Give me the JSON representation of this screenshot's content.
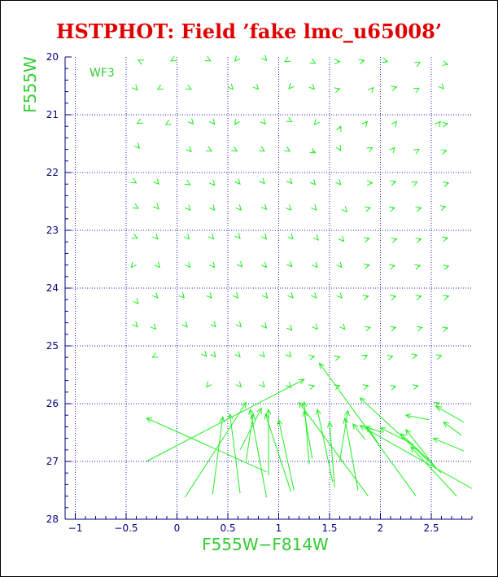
{
  "chart_data": {
    "type": "scatter",
    "title": "HSTPHOT: Field ’fake lmc_u65008’",
    "xlabel": "F555W−F814W",
    "ylabel": "F555W",
    "panel_label": "WF3",
    "xlim": [
      -1.1,
      2.9
    ],
    "ylim": [
      20,
      28
    ],
    "y_inverted": true,
    "x_ticks": [
      -1,
      -0.5,
      0,
      0.5,
      1,
      1.5,
      2,
      2.5
    ],
    "x_tick_labels": [
      "−1",
      "−0.5",
      "0",
      "0.5",
      "1",
      "1.5",
      "2",
      "2.5"
    ],
    "y_ticks": [
      20,
      21,
      22,
      23,
      24,
      25,
      26,
      27,
      28
    ],
    "y_tick_labels": [
      "20",
      "21",
      "22",
      "23",
      "24",
      "25",
      "26",
      "27",
      "28"
    ],
    "grid": true,
    "grid_style": "dotted",
    "colors": {
      "title": "#e00000",
      "labels": "#33cc33",
      "axes": "#000080",
      "grid": "#1f1fbf",
      "vectors": "#22ee22"
    },
    "vector_series": {
      "description_of_fields": [
        "x_start",
        "y_start",
        "x_end",
        "y_end"
      ],
      "vectors": [
        [
          -0.37,
          20.06,
          -0.38,
          20.05
        ],
        [
          -0.05,
          20.06,
          -0.06,
          20.07
        ],
        [
          0.32,
          20.06,
          0.33,
          20.07
        ],
        [
          0.58,
          20.05,
          0.57,
          20.07
        ],
        [
          0.87,
          20.04,
          0.88,
          20.06
        ],
        [
          1.07,
          20.07,
          1.06,
          20.08
        ],
        [
          1.35,
          20.1,
          1.36,
          20.11
        ],
        [
          1.58,
          20.08,
          1.6,
          20.08
        ],
        [
          1.82,
          20.07,
          1.84,
          20.06
        ],
        [
          2.05,
          20.07,
          2.07,
          20.08
        ],
        [
          2.38,
          20.1,
          2.39,
          20.09
        ],
        [
          2.64,
          20.12,
          2.66,
          20.13
        ],
        [
          -0.4,
          20.55,
          -0.39,
          20.57
        ],
        [
          -0.18,
          20.55,
          -0.19,
          20.56
        ],
        [
          0.13,
          20.55,
          0.14,
          20.56
        ],
        [
          0.54,
          20.54,
          0.55,
          20.56
        ],
        [
          0.79,
          20.54,
          0.8,
          20.56
        ],
        [
          1.11,
          20.53,
          1.1,
          20.55
        ],
        [
          1.34,
          20.54,
          1.35,
          20.56
        ],
        [
          1.58,
          20.56,
          1.6,
          20.55
        ],
        [
          1.92,
          20.55,
          1.93,
          20.53
        ],
        [
          2.14,
          20.53,
          2.16,
          20.52
        ],
        [
          2.37,
          20.55,
          2.38,
          20.54
        ],
        [
          2.61,
          20.53,
          2.62,
          20.55
        ],
        [
          -0.38,
          21.14,
          -0.39,
          21.15
        ],
        [
          -0.1,
          21.16,
          -0.11,
          21.17
        ],
        [
          0.15,
          21.14,
          0.16,
          21.16
        ],
        [
          0.36,
          21.14,
          0.37,
          21.16
        ],
        [
          0.58,
          21.14,
          0.57,
          21.17
        ],
        [
          0.86,
          21.14,
          0.87,
          21.16
        ],
        [
          1.12,
          21.11,
          1.13,
          21.12
        ],
        [
          1.36,
          21.15,
          1.35,
          21.17
        ],
        [
          1.6,
          21.24,
          1.61,
          21.2
        ],
        [
          1.86,
          21.14,
          1.87,
          21.12
        ],
        [
          2.15,
          21.14,
          2.16,
          21.12
        ],
        [
          2.58,
          21.14,
          2.59,
          21.12
        ],
        [
          2.64,
          21.16,
          2.66,
          21.15
        ],
        [
          -0.38,
          21.56,
          -0.37,
          21.58
        ],
        [
          0.13,
          21.62,
          0.14,
          21.64
        ],
        [
          0.33,
          21.62,
          0.34,
          21.63
        ],
        [
          0.58,
          21.62,
          0.59,
          21.63
        ],
        [
          0.85,
          21.62,
          0.86,
          21.63
        ],
        [
          1.1,
          21.62,
          1.11,
          21.63
        ],
        [
          1.33,
          21.63,
          1.36,
          21.66
        ],
        [
          1.6,
          21.59,
          1.61,
          21.62
        ],
        [
          1.91,
          21.58,
          1.92,
          21.57
        ],
        [
          2.13,
          21.59,
          2.14,
          21.57
        ],
        [
          2.37,
          21.61,
          2.38,
          21.6
        ],
        [
          2.63,
          21.63,
          2.65,
          21.62
        ],
        [
          -0.41,
          22.17,
          -0.4,
          22.18
        ],
        [
          -0.19,
          22.18,
          -0.18,
          22.2
        ],
        [
          0.12,
          22.2,
          0.13,
          22.21
        ],
        [
          0.36,
          22.2,
          0.37,
          22.22
        ],
        [
          0.61,
          22.18,
          0.62,
          22.2
        ],
        [
          0.85,
          22.17,
          0.86,
          22.19
        ],
        [
          1.12,
          22.17,
          1.13,
          22.19
        ],
        [
          1.35,
          22.19,
          1.36,
          22.21
        ],
        [
          1.6,
          22.19,
          1.61,
          22.21
        ],
        [
          1.9,
          22.18,
          1.92,
          22.18
        ],
        [
          2.13,
          22.17,
          2.15,
          22.16
        ],
        [
          2.35,
          22.17,
          2.36,
          22.16
        ],
        [
          2.65,
          22.19,
          2.67,
          22.18
        ],
        [
          -0.39,
          22.61,
          -0.38,
          22.62
        ],
        [
          -0.19,
          22.61,
          -0.18,
          22.63
        ],
        [
          0.12,
          22.63,
          0.13,
          22.65
        ],
        [
          0.36,
          22.63,
          0.37,
          22.65
        ],
        [
          0.62,
          22.63,
          0.63,
          22.65
        ],
        [
          0.87,
          22.62,
          0.88,
          22.64
        ],
        [
          1.11,
          22.63,
          1.12,
          22.65
        ],
        [
          1.36,
          22.63,
          1.37,
          22.65
        ],
        [
          1.66,
          22.66,
          1.67,
          22.68
        ],
        [
          1.88,
          22.62,
          1.9,
          22.61
        ],
        [
          2.12,
          22.62,
          2.14,
          22.61
        ],
        [
          2.38,
          22.62,
          2.4,
          22.61
        ],
        [
          2.62,
          22.6,
          2.64,
          22.59
        ],
        [
          -0.4,
          23.13,
          -0.39,
          23.14
        ],
        [
          -0.2,
          23.13,
          -0.19,
          23.15
        ],
        [
          0.11,
          23.13,
          0.12,
          23.15
        ],
        [
          0.35,
          23.13,
          0.36,
          23.15
        ],
        [
          0.61,
          23.12,
          0.62,
          23.14
        ],
        [
          0.87,
          23.13,
          0.88,
          23.15
        ],
        [
          1.13,
          23.13,
          1.14,
          23.15
        ],
        [
          1.38,
          23.15,
          1.39,
          23.17
        ],
        [
          1.63,
          23.17,
          1.64,
          23.19
        ],
        [
          1.87,
          23.15,
          1.89,
          23.14
        ],
        [
          2.14,
          23.16,
          2.16,
          23.15
        ],
        [
          2.38,
          23.16,
          2.4,
          23.15
        ],
        [
          2.64,
          23.14,
          2.66,
          23.13
        ],
        [
          -0.44,
          23.62,
          -0.45,
          23.64
        ],
        [
          -0.18,
          23.62,
          -0.17,
          23.64
        ],
        [
          0.12,
          23.62,
          0.13,
          23.64
        ],
        [
          0.36,
          23.62,
          0.37,
          23.64
        ],
        [
          0.63,
          23.61,
          0.64,
          23.63
        ],
        [
          0.87,
          23.62,
          0.88,
          23.64
        ],
        [
          1.12,
          23.61,
          1.13,
          23.63
        ],
        [
          1.37,
          23.62,
          1.38,
          23.64
        ],
        [
          1.61,
          23.62,
          1.62,
          23.64
        ],
        [
          1.87,
          23.61,
          1.89,
          23.6
        ],
        [
          2.12,
          23.62,
          2.14,
          23.61
        ],
        [
          2.37,
          23.62,
          2.39,
          23.61
        ],
        [
          2.65,
          23.63,
          2.67,
          23.62
        ],
        [
          -0.39,
          24.25,
          -0.38,
          24.27
        ],
        [
          -0.2,
          24.15,
          -0.19,
          24.17
        ],
        [
          0.06,
          24.15,
          0.07,
          24.17
        ],
        [
          0.33,
          24.15,
          0.34,
          24.17
        ],
        [
          0.59,
          24.15,
          0.6,
          24.17
        ],
        [
          0.88,
          24.15,
          0.89,
          24.17
        ],
        [
          1.13,
          24.15,
          1.14,
          24.17
        ],
        [
          1.36,
          24.15,
          1.37,
          24.17
        ],
        [
          1.61,
          24.15,
          1.62,
          24.17
        ],
        [
          1.86,
          24.15,
          1.88,
          24.14
        ],
        [
          2.13,
          24.15,
          2.15,
          24.14
        ],
        [
          2.38,
          24.15,
          2.4,
          24.14
        ],
        [
          2.65,
          24.15,
          2.67,
          24.14
        ],
        [
          -0.4,
          24.65,
          -0.39,
          24.67
        ],
        [
          -0.22,
          24.69,
          -0.21,
          24.71
        ],
        [
          0.09,
          24.65,
          0.1,
          24.67
        ],
        [
          0.37,
          24.65,
          0.38,
          24.67
        ],
        [
          0.62,
          24.65,
          0.63,
          24.67
        ],
        [
          0.87,
          24.67,
          0.88,
          24.69
        ],
        [
          1.12,
          24.71,
          1.13,
          24.73
        ],
        [
          1.37,
          24.69,
          1.38,
          24.71
        ],
        [
          1.64,
          24.69,
          1.65,
          24.71
        ],
        [
          1.88,
          24.69,
          1.9,
          24.68
        ],
        [
          2.13,
          24.69,
          2.15,
          24.68
        ],
        [
          2.39,
          24.69,
          2.41,
          24.68
        ],
        [
          2.64,
          24.7,
          2.66,
          24.69
        ],
        [
          -0.23,
          25.19,
          -0.24,
          25.2
        ],
        [
          0.28,
          25.16,
          0.29,
          25.18
        ],
        [
          0.37,
          25.17,
          0.38,
          25.19
        ],
        [
          0.61,
          25.17,
          0.62,
          25.19
        ],
        [
          0.85,
          25.17,
          0.86,
          25.19
        ],
        [
          1.11,
          25.17,
          1.12,
          25.19
        ],
        [
          1.33,
          25.19,
          1.35,
          25.18
        ],
        [
          1.58,
          25.2,
          1.6,
          25.19
        ],
        [
          1.85,
          25.18,
          1.87,
          25.16
        ],
        [
          2.1,
          25.19,
          2.12,
          25.18
        ],
        [
          2.34,
          25.17,
          2.36,
          25.16
        ],
        [
          2.58,
          25.18,
          2.6,
          25.17
        ],
        [
          0.3,
          25.69,
          0.29,
          25.71
        ],
        [
          0.62,
          25.69,
          0.63,
          25.71
        ],
        [
          0.85,
          25.69,
          0.86,
          25.71
        ],
        [
          1.11,
          25.7,
          1.12,
          25.72
        ],
        [
          1.33,
          25.7,
          1.35,
          25.69
        ],
        [
          1.58,
          25.7,
          1.6,
          25.69
        ],
        [
          1.86,
          25.7,
          1.88,
          25.69
        ],
        [
          2.13,
          25.71,
          2.15,
          25.7
        ],
        [
          2.35,
          25.7,
          2.37,
          25.69
        ],
        [
          2.56,
          26.0,
          2.58,
          25.99
        ],
        [
          -0.3,
          27.0,
          1.25,
          25.58
        ],
        [
          0.08,
          27.62,
          0.68,
          25.98
        ],
        [
          0.35,
          27.57,
          0.45,
          26.23
        ],
        [
          0.62,
          27.55,
          0.52,
          26.18
        ],
        [
          0.62,
          26.8,
          0.83,
          26.08
        ],
        [
          0.88,
          27.62,
          0.72,
          26.1
        ],
        [
          0.9,
          27.24,
          0.9,
          26.1
        ],
        [
          0.68,
          26.98,
          0.75,
          26.18
        ],
        [
          1.12,
          27.52,
          0.87,
          26.18
        ],
        [
          1.15,
          27.5,
          1.0,
          26.28
        ],
        [
          1.3,
          27.05,
          1.25,
          25.97
        ],
        [
          1.33,
          26.95,
          1.25,
          26.13
        ],
        [
          1.53,
          27.35,
          1.38,
          26.1
        ],
        [
          1.55,
          27.45,
          1.5,
          26.32
        ],
        [
          1.6,
          27.0,
          1.68,
          26.12
        ],
        [
          1.78,
          27.5,
          1.65,
          26.25
        ],
        [
          1.85,
          26.62,
          1.73,
          26.35
        ],
        [
          1.88,
          27.6,
          1.2,
          25.98
        ],
        [
          2.0,
          26.75,
          1.87,
          26.4
        ],
        [
          2.02,
          26.5,
          1.85,
          26.4
        ],
        [
          2.35,
          27.6,
          1.4,
          25.3
        ],
        [
          2.32,
          26.7,
          2.0,
          26.42
        ],
        [
          2.48,
          26.98,
          2.2,
          26.52
        ],
        [
          2.55,
          27.12,
          2.25,
          26.45
        ],
        [
          2.6,
          27.2,
          1.8,
          25.9
        ],
        [
          2.75,
          27.6,
          2.3,
          26.75
        ],
        [
          2.82,
          26.82,
          2.52,
          26.6
        ],
        [
          2.9,
          27.47,
          1.8,
          26.38
        ],
        [
          2.82,
          26.32,
          2.55,
          26.05
        ],
        [
          0.88,
          27.18,
          -0.3,
          26.25
        ],
        [
          2.48,
          26.28,
          2.25,
          26.2
        ],
        [
          2.8,
          26.55,
          2.62,
          26.32
        ]
      ]
    }
  }
}
